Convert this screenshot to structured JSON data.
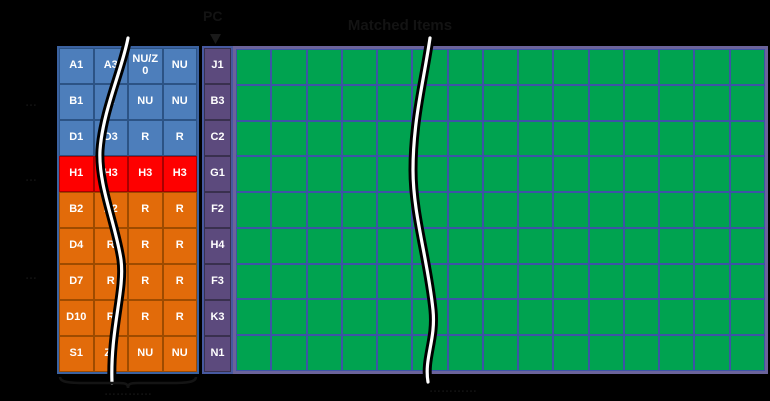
{
  "header": {
    "pc_label": "PC",
    "title": "Matched Items"
  },
  "left_grid": {
    "rows": [
      {
        "band": "blue",
        "cells": [
          "A1",
          "A3",
          "NU/Z0",
          "NU"
        ]
      },
      {
        "band": "blue",
        "cells": [
          "B1",
          "R",
          "NU",
          "NU"
        ]
      },
      {
        "band": "blue",
        "cells": [
          "D1",
          "D3",
          "R",
          "R"
        ]
      },
      {
        "band": "red",
        "cells": [
          "H1",
          "H3",
          "H3",
          "H3"
        ]
      },
      {
        "band": "orange",
        "cells": [
          "B2",
          "D2",
          "R",
          "R"
        ]
      },
      {
        "band": "orange",
        "cells": [
          "D4",
          "R",
          "R",
          "R"
        ]
      },
      {
        "band": "orange",
        "cells": [
          "D7",
          "R",
          "R",
          "R"
        ]
      },
      {
        "band": "orange",
        "cells": [
          "D10",
          "R",
          "R",
          "R"
        ]
      },
      {
        "band": "orange",
        "cells": [
          "S1",
          "Z0",
          "NU",
          "NU"
        ]
      }
    ]
  },
  "pc_column": {
    "cells": [
      "J1",
      "B3",
      "C2",
      "G1",
      "F2",
      "H4",
      "F3",
      "K3",
      "N1"
    ]
  },
  "green_grid": {
    "columns": 15,
    "rows": 9
  },
  "side_labels": [
    "…",
    "…",
    "…"
  ],
  "footer": {
    "left_label": "…………",
    "center_label": "…………"
  },
  "colors": {
    "blue": "#4D7EBB",
    "blue_dark": "#2C5385",
    "red": "#FE0000",
    "red_dark": "#A80000",
    "orange": "#E26B0A",
    "orange_dark": "#9E4B00",
    "purple": "#5C4A7D",
    "purple_dark": "#39304E",
    "green": "#00A350",
    "green_line": "#3D54A6",
    "frame_blue": "#3B62A0",
    "frame_purple": "#4759A0",
    "frame_slate": "#6B639B"
  }
}
